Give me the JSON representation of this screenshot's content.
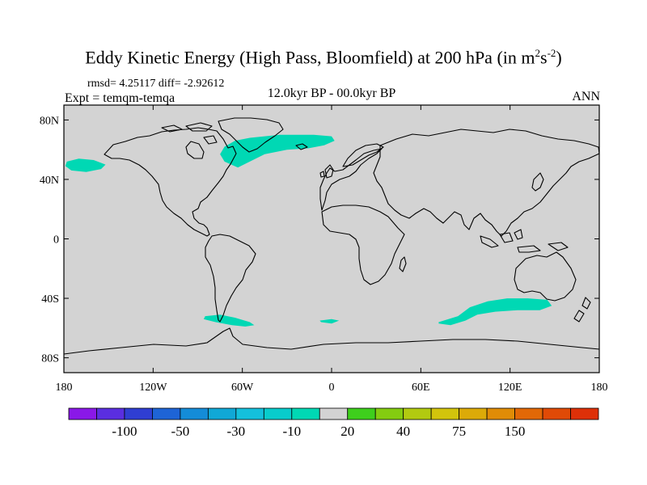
{
  "title": {
    "main": "Eddy Kinetic Energy (High Pass, Bloomfield) at 200 hPa (in m",
    "sup1": "2",
    "mid": "s",
    "sup2": "-2",
    "end": ")"
  },
  "stats": "rmsd= 4.25117  diff= -2.92612",
  "expt": "Expt = temqm-temqa",
  "period": "12.0kyr BP - 00.0kyr BP",
  "season": "ANN",
  "map": {
    "background": "#d3d3d3",
    "anomaly_color": "#00d8b4",
    "lat_ticks": [
      {
        "lat": 80,
        "label": "80N"
      },
      {
        "lat": 40,
        "label": "40N"
      },
      {
        "lat": 0,
        "label": "0"
      },
      {
        "lat": -40,
        "label": "40S"
      },
      {
        "lat": -80,
        "label": "80S"
      }
    ],
    "lon_ticks": [
      {
        "lon": -180,
        "label": "180"
      },
      {
        "lon": -120,
        "label": "120W"
      },
      {
        "lon": -60,
        "label": "60W"
      },
      {
        "lon": 0,
        "label": "0"
      },
      {
        "lon": 60,
        "label": "60E"
      },
      {
        "lon": 120,
        "label": "120E"
      },
      {
        "lon": 180,
        "label": "180"
      }
    ],
    "anomaly_regions": [
      {
        "name": "north-atlantic",
        "lonlat": [
          [
            -72,
            62
          ],
          [
            -65,
            66
          ],
          [
            -55,
            68
          ],
          [
            -45,
            69
          ],
          [
            -35,
            70
          ],
          [
            -25,
            70
          ],
          [
            -12,
            70
          ],
          [
            0,
            69
          ],
          [
            2,
            66
          ],
          [
            -5,
            63
          ],
          [
            -15,
            61
          ],
          [
            -30,
            60
          ],
          [
            -45,
            57
          ],
          [
            -55,
            52
          ],
          [
            -63,
            48
          ],
          [
            -72,
            52
          ],
          [
            -75,
            57
          ]
        ]
      },
      {
        "name": "north-pacific",
        "lonlat": [
          [
            -178,
            52
          ],
          [
            -170,
            54
          ],
          [
            -160,
            53
          ],
          [
            -152,
            50
          ],
          [
            -155,
            47
          ],
          [
            -165,
            45
          ],
          [
            -175,
            46
          ],
          [
            -179,
            49
          ]
        ]
      },
      {
        "name": "south-of-south-america",
        "lonlat": [
          [
            -85,
            -52
          ],
          [
            -75,
            -51
          ],
          [
            -65,
            -53
          ],
          [
            -55,
            -56
          ],
          [
            -52,
            -58
          ],
          [
            -58,
            -59
          ],
          [
            -67,
            -58
          ],
          [
            -78,
            -56
          ],
          [
            -86,
            -54
          ]
        ]
      },
      {
        "name": "south-atlantic",
        "lonlat": [
          [
            -8,
            -55
          ],
          [
            0,
            -54
          ],
          [
            5,
            -55
          ],
          [
            0,
            -57
          ],
          [
            -7,
            -56
          ]
        ]
      },
      {
        "name": "south-indian",
        "lonlat": [
          [
            72,
            -56
          ],
          [
            85,
            -52
          ],
          [
            93,
            -46
          ],
          [
            105,
            -42
          ],
          [
            118,
            -40
          ],
          [
            132,
            -40
          ],
          [
            145,
            -41
          ],
          [
            148,
            -45
          ],
          [
            140,
            -48
          ],
          [
            125,
            -48
          ],
          [
            110,
            -49
          ],
          [
            98,
            -51
          ],
          [
            90,
            -55
          ],
          [
            80,
            -58
          ],
          [
            72,
            -57
          ]
        ]
      }
    ]
  },
  "colorbar": {
    "colors": [
      "#8a18e8",
      "#5a2ee0",
      "#2f3ed2",
      "#1e64d6",
      "#148cd8",
      "#10a8d6",
      "#14c0dc",
      "#08cccc",
      "#00d8b4",
      "#d3d3d3",
      "#3ecf1c",
      "#84cc10",
      "#b2ca10",
      "#d2c40c",
      "#dcaa08",
      "#e08c06",
      "#e26806",
      "#e04a06",
      "#de3008"
    ],
    "labels": [
      {
        "after_box": 2,
        "text": "-100"
      },
      {
        "after_box": 4,
        "text": "-50"
      },
      {
        "after_box": 6,
        "text": "-30"
      },
      {
        "after_box": 8,
        "text": "-10"
      },
      {
        "after_box": 10,
        "text": "20"
      },
      {
        "after_box": 12,
        "text": "40"
      },
      {
        "after_box": 14,
        "text": "75"
      },
      {
        "after_box": 16,
        "text": "150"
      }
    ]
  }
}
